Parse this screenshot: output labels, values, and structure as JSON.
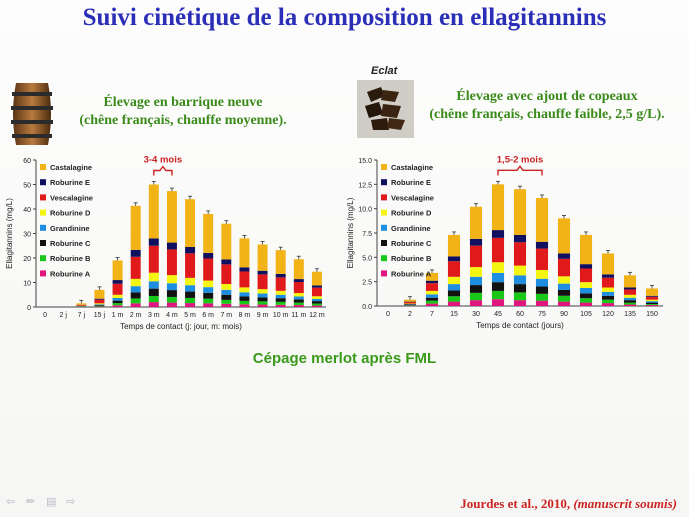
{
  "title": "Suivi cinétique de la composition en ellagitannins",
  "left_panel": {
    "subtitle_line1": "Élevage en barrique neuve",
    "subtitle_line2": "(chêne français, chauffe moyenne).",
    "image_icon": "barrel-image"
  },
  "right_panel": {
    "image_label": "Eclat",
    "subtitle_line1": "Élevage avec ajout de copeaux",
    "subtitle_line2": "(chêne français, chauffe faible, 2,5 g/L).",
    "image_icon": "oak-chips-image"
  },
  "footer": "Cépage merlot après FML",
  "citation": {
    "authors": "Jourdes et al., 2010, ",
    "note": "(manuscrit soumis)"
  },
  "colors": {
    "title": "#2b2fb8",
    "subtitle": "#3a8a1a",
    "annotation": "#cc2222",
    "series": [
      "#e0167e",
      "#19c719",
      "#111111",
      "#1e8fe0",
      "#f5f514",
      "#e01a1a",
      "#101060",
      "#f2b317"
    ]
  },
  "chart_data": [
    {
      "type": "bar",
      "stacked": true,
      "xlabel": "Temps de contact (j: jour, m: mois)",
      "ylabel": "Ellagitannins (mg/L)",
      "ylim": [
        0,
        60
      ],
      "yticks": [
        "0",
        "10",
        "20",
        "30",
        "40",
        "50",
        "60"
      ],
      "categories": [
        "0",
        "2 j",
        "7 j",
        "15 j",
        "1 m",
        "2 m",
        "3 m",
        "4 m",
        "5 m",
        "6 m",
        "7 m",
        "8 m",
        "9 m",
        "10 m",
        "11 m",
        "12 m"
      ],
      "annotation": "3-4 mois",
      "legend_position": "top-left",
      "series": [
        {
          "name": "Roburine A",
          "values": [
            0,
            0,
            0.1,
            0.2,
            0.7,
            1.5,
            2,
            1.8,
            1.6,
            1.5,
            1.3,
            1.1,
            1,
            0.9,
            0.8,
            0.6
          ]
        },
        {
          "name": "Roburine B",
          "values": [
            0,
            0,
            0.1,
            0.3,
            0.9,
            2,
            2.5,
            2.3,
            2.1,
            1.9,
            1.6,
            1.4,
            1.3,
            1.2,
            1,
            0.8
          ]
        },
        {
          "name": "Roburine C",
          "values": [
            0,
            0,
            0.1,
            0.3,
            1,
            2.5,
            3,
            2.8,
            2.6,
            2.4,
            2.1,
            1.8,
            1.6,
            1.5,
            1.3,
            1
          ]
        },
        {
          "name": "Grandinine",
          "values": [
            0,
            0,
            0.1,
            0.3,
            1.1,
            2.5,
            3,
            2.8,
            2.6,
            2.3,
            2,
            1.7,
            1.6,
            1.4,
            1.2,
            0.9
          ]
        },
        {
          "name": "Roburine D",
          "values": [
            0,
            0,
            0.1,
            0.4,
            1.3,
            3,
            3.5,
            3.3,
            3,
            2.7,
            2.4,
            2,
            1.8,
            1.6,
            1.4,
            1.1
          ]
        },
        {
          "name": "Vescalagine",
          "values": [
            0,
            0,
            0.3,
            1.5,
            4.5,
            9,
            11,
            10.5,
            10,
            9,
            8,
            6.5,
            6,
            5.5,
            4.5,
            3.5
          ]
        },
        {
          "name": "Roburine E",
          "values": [
            0,
            0,
            0.1,
            0.4,
            1.5,
            2.8,
            3,
            2.8,
            2.6,
            2.3,
            2,
            1.7,
            1.5,
            1.4,
            1.2,
            0.9
          ]
        },
        {
          "name": "Castalagine",
          "values": [
            0,
            0,
            0.6,
            3.6,
            8,
            18,
            22,
            21,
            19.5,
            15.9,
            14.6,
            11.8,
            10.7,
            9.7,
            8.1,
            5.6
          ]
        }
      ]
    },
    {
      "type": "bar",
      "stacked": true,
      "xlabel": "Temps de contact (jours)",
      "ylabel": "Ellagitannins (mg/L)",
      "ylim": [
        0,
        15
      ],
      "yticks": [
        "0.0",
        "2.5",
        "5.0",
        "7.5",
        "10.0",
        "12.5",
        "15.0"
      ],
      "categories": [
        "0",
        "2",
        "7",
        "15",
        "30",
        "45",
        "60",
        "75",
        "90",
        "105",
        "120",
        "135",
        "150"
      ],
      "annotation": "1,5-2 mois",
      "legend_position": "top-left",
      "series": [
        {
          "name": "Roburine A",
          "values": [
            0,
            0.05,
            0.25,
            0.45,
            0.6,
            0.7,
            0.6,
            0.55,
            0.45,
            0.35,
            0.3,
            0.15,
            0.1
          ]
        },
        {
          "name": "Roburine B",
          "values": [
            0,
            0.05,
            0.3,
            0.55,
            0.75,
            0.85,
            0.8,
            0.7,
            0.6,
            0.45,
            0.35,
            0.2,
            0.1
          ]
        },
        {
          "name": "Roburine C",
          "values": [
            0,
            0.05,
            0.3,
            0.6,
            0.8,
            0.9,
            0.85,
            0.75,
            0.6,
            0.5,
            0.4,
            0.25,
            0.15
          ]
        },
        {
          "name": "Grandinine",
          "values": [
            0,
            0.05,
            0.35,
            0.65,
            0.85,
            0.95,
            0.9,
            0.8,
            0.65,
            0.55,
            0.4,
            0.25,
            0.15
          ]
        },
        {
          "name": "Roburine D",
          "values": [
            0,
            0.05,
            0.35,
            0.75,
            1,
            1.1,
            1,
            0.9,
            0.75,
            0.6,
            0.45,
            0.3,
            0.15
          ]
        },
        {
          "name": "Vescalagine",
          "values": [
            0,
            0.15,
            0.8,
            1.6,
            2.2,
            2.5,
            2.4,
            2.2,
            1.8,
            1.4,
            1,
            0.55,
            0.3
          ]
        },
        {
          "name": "Roburine E",
          "values": [
            0,
            0.05,
            0.25,
            0.5,
            0.7,
            0.8,
            0.75,
            0.7,
            0.55,
            0.45,
            0.35,
            0.2,
            0.1
          ]
        },
        {
          "name": "Castalagine",
          "values": [
            0,
            0.2,
            0.8,
            2.2,
            3.3,
            4.7,
            4.7,
            4.5,
            3.6,
            3,
            2.15,
            1.25,
            0.75
          ]
        }
      ]
    }
  ]
}
